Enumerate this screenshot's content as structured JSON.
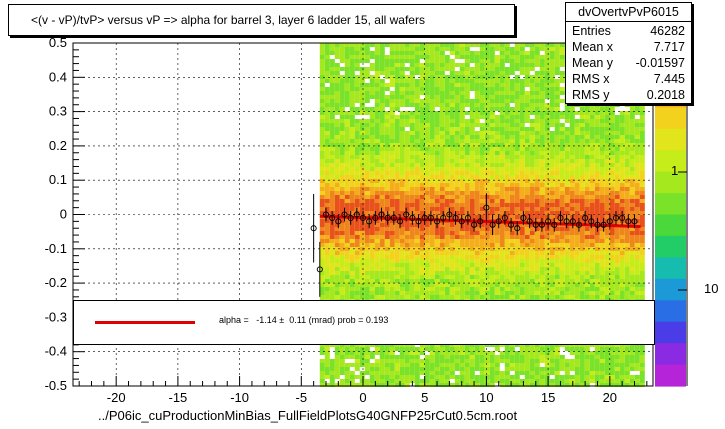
{
  "title": "<(v - vP)/tvP> versus   vP => alpha for barrel 3, layer 6 ladder 15, all wafers",
  "xlabel": "../P06ic_cuProductionMinBias_FullFieldPlotsG40GNFP25rCut0.5cm.root",
  "stats": {
    "name": "dvOvertvPvP6015",
    "rows": [
      {
        "label": "Entries",
        "value": "46282"
      },
      {
        "label": "Mean x",
        "value": "7.717"
      },
      {
        "label": "Mean y",
        "value": "-0.01597"
      },
      {
        "label": "RMS x",
        "value": "7.445"
      },
      {
        "label": "RMS y",
        "value": "0.2018"
      }
    ]
  },
  "fit_text": "alpha =   -1.14 ±  0.11 (mrad) prob = 0.193",
  "colors": {
    "fit": "#e00000",
    "band_low": "#a6e81e",
    "band_mid": "#f2d21c",
    "band_high": "#e8501c"
  },
  "zscale": {
    "ticks": [
      "1",
      "10"
    ]
  },
  "chart_data": {
    "type": "heatmap",
    "title": "<(v - vP)/tvP> versus   vP => alpha for barrel 3, layer 6 ladder 15, all wafers",
    "xlabel": "../P06ic_cuProductionMinBias_FullFieldPlotsG40GNFP25rCut0.5cm.root",
    "ylabel": "",
    "xlim": [
      -23.5,
      23.5
    ],
    "ylim": [
      -0.5,
      0.5
    ],
    "xticks": [
      -20,
      -15,
      -10,
      -5,
      0,
      5,
      10,
      15,
      20
    ],
    "yticks": [
      -0.5,
      -0.4,
      -0.3,
      -0.2,
      -0.1,
      0,
      0.1,
      0.2,
      0.3,
      0.4,
      0.5
    ],
    "ytick_labels": [
      "-0.5",
      "-0.4",
      "-0.3",
      "-0.2",
      "-0.1",
      "0",
      "0.1",
      "0.2",
      "0.3",
      "0.4",
      "0.5"
    ],
    "grid": true,
    "filled_x_range": [
      -3.5,
      22.5
    ],
    "profile": {
      "x": [
        -4,
        -3.5,
        -3,
        -2.5,
        -2,
        -1.5,
        -1,
        -0.5,
        0,
        0.5,
        1,
        1.5,
        2,
        2.5,
        3,
        3.5,
        4,
        4.5,
        5,
        5.5,
        6,
        6.5,
        7,
        7.5,
        8,
        8.5,
        9,
        9.5,
        10,
        10.5,
        11,
        11.5,
        12,
        12.5,
        13,
        13.5,
        14,
        14.5,
        15,
        15.5,
        16,
        16.5,
        17,
        17.5,
        18,
        18.5,
        19,
        19.5,
        20,
        20.5,
        21,
        21.5,
        22
      ],
      "y": [
        -0.04,
        -0.16,
        0.0,
        -0.01,
        -0.02,
        0.0,
        -0.01,
        0.0,
        -0.01,
        -0.02,
        -0.01,
        0.0,
        -0.01,
        -0.01,
        -0.02,
        0.0,
        -0.01,
        -0.02,
        -0.01,
        -0.01,
        -0.02,
        -0.01,
        0.0,
        -0.01,
        -0.02,
        -0.01,
        -0.03,
        -0.02,
        0.02,
        -0.03,
        -0.02,
        -0.01,
        -0.03,
        -0.04,
        -0.01,
        -0.02,
        -0.03,
        -0.03,
        -0.02,
        -0.03,
        -0.01,
        -0.02,
        -0.02,
        -0.03,
        -0.01,
        -0.02,
        -0.03,
        -0.03,
        -0.02,
        -0.01,
        -0.01,
        -0.02,
        -0.02
      ],
      "err": [
        0.1,
        0.08,
        0.02,
        0.02,
        0.02,
        0.02,
        0.02,
        0.02,
        0.02,
        0.02,
        0.02,
        0.02,
        0.02,
        0.02,
        0.02,
        0.02,
        0.02,
        0.02,
        0.02,
        0.02,
        0.02,
        0.02,
        0.02,
        0.02,
        0.02,
        0.02,
        0.02,
        0.02,
        0.04,
        0.03,
        0.02,
        0.02,
        0.02,
        0.02,
        0.02,
        0.02,
        0.02,
        0.02,
        0.02,
        0.02,
        0.02,
        0.02,
        0.02,
        0.02,
        0.02,
        0.02,
        0.02,
        0.02,
        0.02,
        0.02,
        0.02,
        0.02,
        0.02
      ]
    },
    "fit": {
      "x": [
        -3.5,
        22.5
      ],
      "y": [
        -0.005,
        -0.035
      ]
    }
  }
}
